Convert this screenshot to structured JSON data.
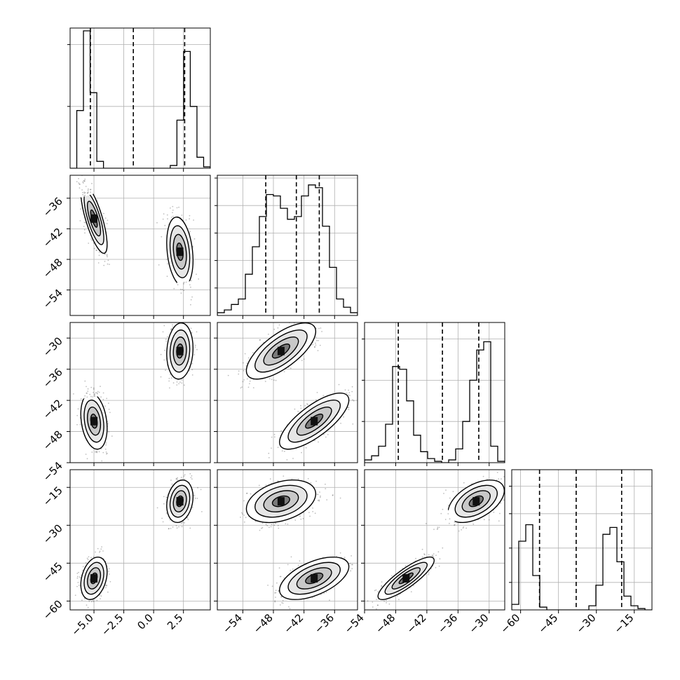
{
  "chart_data": {
    "type": "corner",
    "params": [
      {
        "ticks": [
          -5.0,
          -2.5,
          0.0,
          2.5
        ],
        "range": [
          -7,
          4.75
        ],
        "quantiles": [
          -5.3,
          -1.7,
          2.6
        ],
        "hist": [
          0,
          0.42,
          1.0,
          0.55,
          0.05,
          0,
          0,
          0,
          0,
          0,
          0,
          0,
          0,
          0,
          0,
          0.02,
          0.35,
          0.85,
          0.45,
          0.08,
          0.01
        ],
        "hist_ticks": [
          0.45,
          0.9
        ]
      },
      {
        "ticks": [
          -54,
          -48,
          -42,
          -36
        ],
        "range": [
          -59,
          -31.5
        ],
        "quantiles": [
          -49.5,
          -43.5,
          -39.0
        ],
        "hist": [
          0.02,
          0.04,
          0.08,
          0.12,
          0.3,
          0.5,
          0.72,
          0.88,
          0.87,
          0.78,
          0.7,
          0.72,
          0.87,
          0.95,
          0.93,
          0.65,
          0.35,
          0.12,
          0.06,
          0.02
        ],
        "hist_ticks": [
          0.2,
          0.4,
          0.6,
          0.8,
          1.0
        ]
      },
      {
        "ticks": [
          -54,
          -48,
          -42,
          -36,
          -30
        ],
        "range": [
          -54,
          -27
        ],
        "quantiles": [
          -47.5,
          -39.0,
          -32.0
        ],
        "hist": [
          0.02,
          0.05,
          0.12,
          0.28,
          0.7,
          0.68,
          0.45,
          0.2,
          0.08,
          0.03,
          0.01,
          0.0,
          0.02,
          0.1,
          0.3,
          0.6,
          0.82,
          0.88,
          0.12,
          0.01
        ],
        "hist_ticks": [
          0.3,
          0.6,
          0.9
        ]
      },
      {
        "ticks": [
          -60,
          -45,
          -30,
          -15
        ],
        "range": [
          -63.5,
          -8
        ],
        "quantiles": [
          -52.5,
          -38.0,
          -20.0
        ],
        "hist": [
          0.04,
          0.5,
          0.62,
          0.25,
          0.02,
          0,
          0,
          0,
          0,
          0,
          0,
          0.03,
          0.18,
          0.55,
          0.6,
          0.35,
          0.1,
          0.03,
          0.01,
          0
        ],
        "hist_ticks": [
          0.2,
          0.45,
          0.7,
          0.9
        ]
      }
    ],
    "clusters": [
      [
        -5.0,
        -40.0,
        -46.0,
        -51.0
      ],
      [
        2.2,
        -46.5,
        -32.5,
        -20.5
      ]
    ],
    "pair_rho": {
      "1-0": [
        -0.75,
        -0.25
      ],
      "2-0": [
        -0.25,
        0.1
      ],
      "2-1": [
        0.75,
        0.7
      ],
      "3-0": [
        0.3,
        0.2
      ],
      "3-1": [
        0.55,
        0.35
      ],
      "3-2": [
        0.85,
        0.5
      ]
    },
    "spread": [
      0.55,
      3.4,
      2.7,
      4.2
    ],
    "grid": true,
    "xlabel": "",
    "ylabel": ""
  }
}
